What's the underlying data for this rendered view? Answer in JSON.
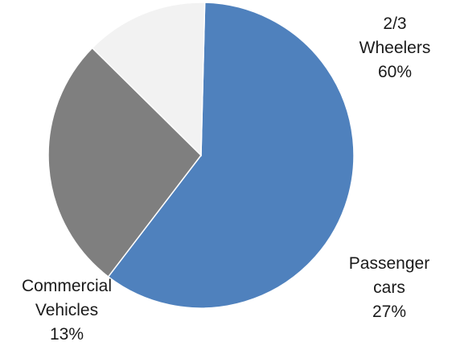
{
  "chart_data": {
    "type": "pie",
    "start_angle_deg": 88.6,
    "direction": "clockwise",
    "legend": "none",
    "slices": [
      {
        "label_lines": [
          "2/3",
          "Wheelers"
        ],
        "value": 60,
        "value_label": "60%",
        "color": "#4f81bd"
      },
      {
        "label_lines": [
          "Passenger",
          "cars"
        ],
        "value": 27,
        "value_label": "27%",
        "color": "#7f7f7f"
      },
      {
        "label_lines": [
          "Commercial",
          "Vehicles"
        ],
        "value": 13,
        "value_label": "13%",
        "color": "#f2f2f2"
      }
    ]
  }
}
